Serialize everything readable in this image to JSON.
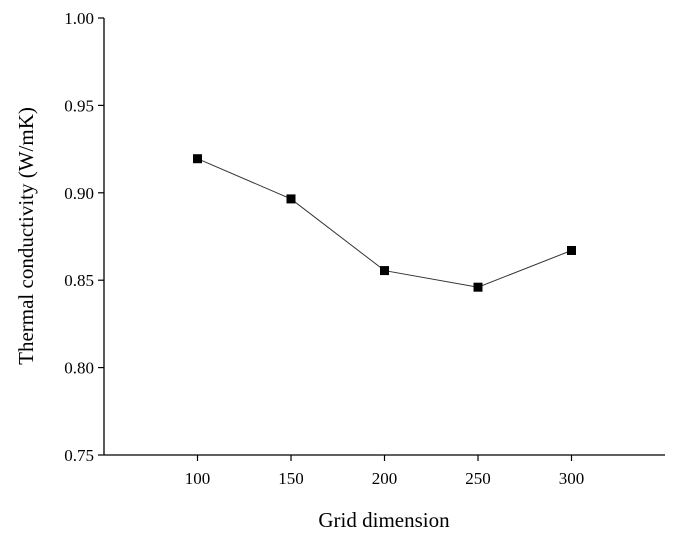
{
  "chart_data": {
    "type": "line",
    "title": "",
    "xlabel": "Grid dimension",
    "ylabel": "Thermal conductivity (W/mK)",
    "xlim": [
      50,
      350
    ],
    "ylim": [
      0.75,
      1.0
    ],
    "x_ticks": [
      100,
      150,
      200,
      250,
      300
    ],
    "x_tick_labels": [
      "100",
      "150",
      "200",
      "250",
      "300"
    ],
    "y_ticks": [
      0.75,
      0.8,
      0.85,
      0.9,
      0.95,
      1.0
    ],
    "y_tick_labels": [
      "0.75",
      "0.80",
      "0.85",
      "0.90",
      "0.95",
      "1.00"
    ],
    "grid": false,
    "legend": "none",
    "marker": "square",
    "series": [
      {
        "x": [
          100,
          150,
          200,
          250,
          300
        ],
        "values": [
          0.9195,
          0.8965,
          0.8555,
          0.846,
          0.867
        ],
        "color": "#000000"
      }
    ]
  }
}
